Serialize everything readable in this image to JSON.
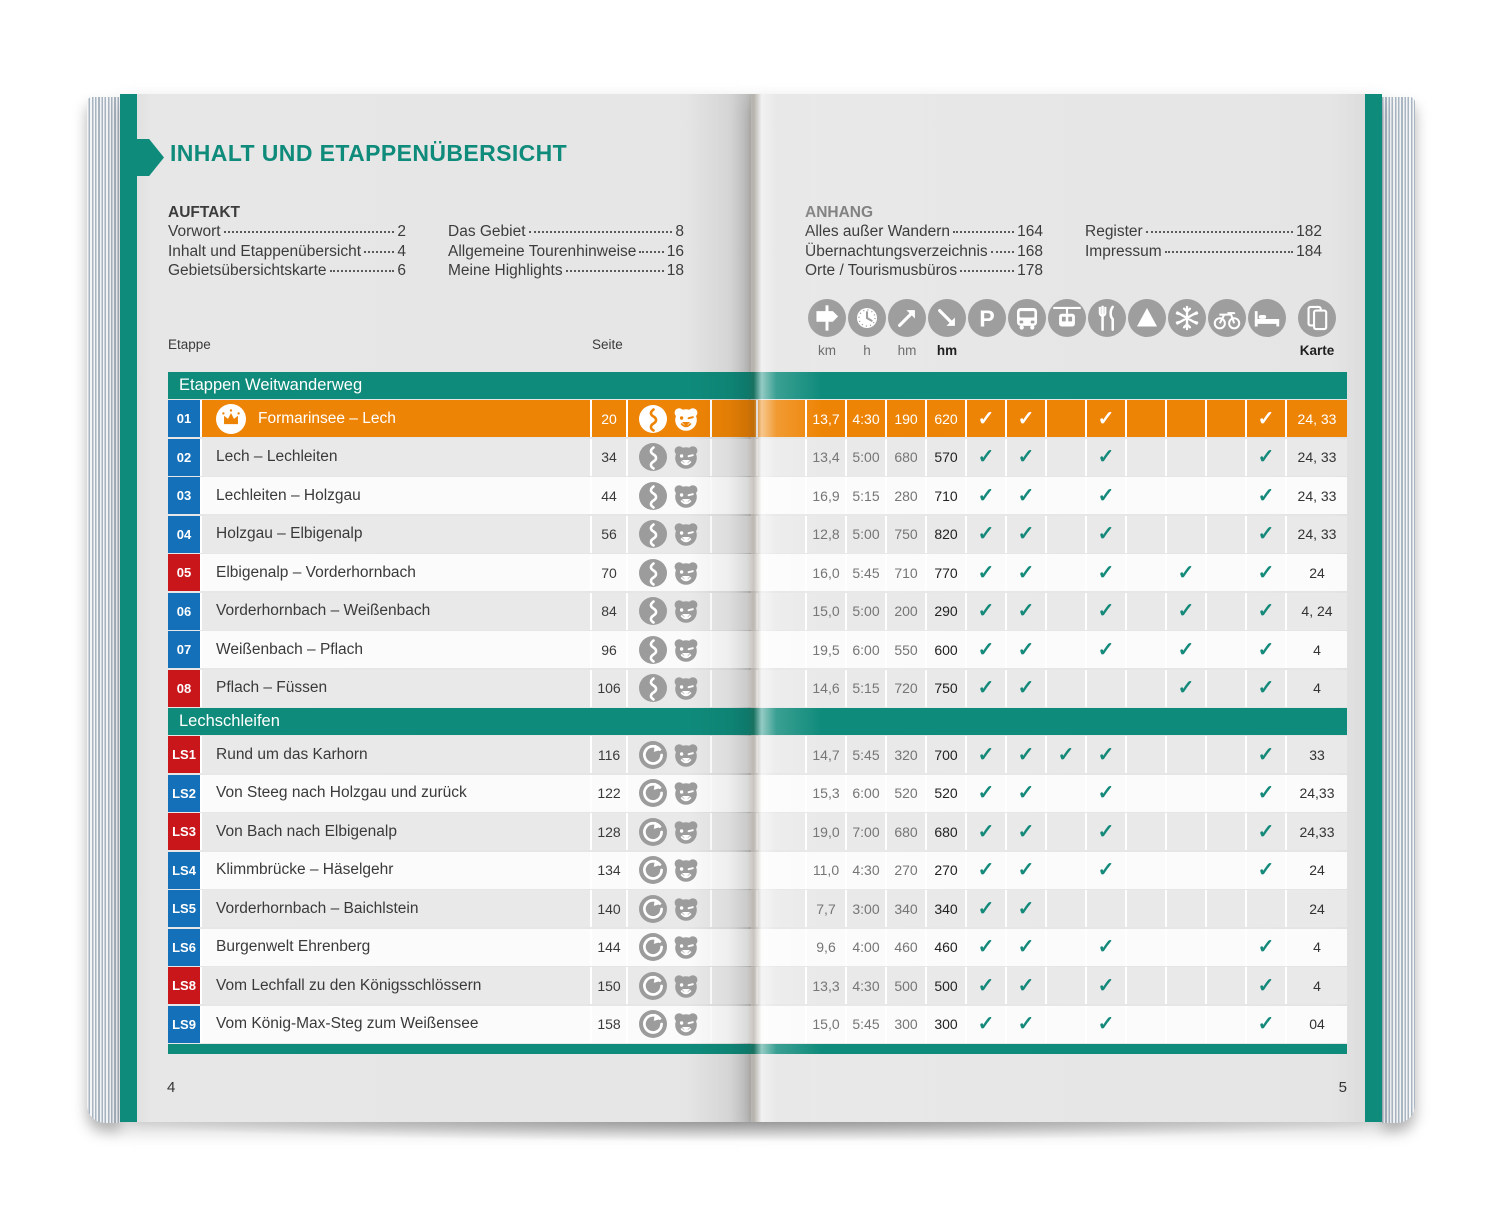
{
  "page": {
    "title": "INHALT UND ETAPPENÜBERSICHT",
    "left_page_number": "4",
    "right_page_number": "5"
  },
  "colors": {
    "teal": "#0F8B7B",
    "orange": "#EE8405",
    "blue": "#1470B8",
    "red": "#C9161B",
    "check": "#15897A",
    "icon_gray": "#9E9E9E"
  },
  "toc": {
    "auftakt": {
      "heading": "AUFTAKT",
      "col1": [
        {
          "label": "Vorwort",
          "page": "2"
        },
        {
          "label": "Inhalt und Etappenübersicht",
          "page": "4"
        },
        {
          "label": "Gebietsübersichtskarte",
          "page": "6"
        }
      ],
      "col2": [
        {
          "label": "Das Gebiet",
          "page": "8"
        },
        {
          "label": "Allgemeine Tourenhinweise",
          "page": "16"
        },
        {
          "label": "Meine Highlights",
          "page": "18"
        }
      ]
    },
    "anhang": {
      "heading": "ANHANG",
      "col1": [
        {
          "label": "Alles außer Wandern",
          "page": "164"
        },
        {
          "label": "Übernachtungsverzeichnis",
          "page": "168"
        },
        {
          "label": "Orte / Tourismusbüros",
          "page": "178"
        }
      ],
      "col2": [
        {
          "label": "Register",
          "page": "182"
        },
        {
          "label": "Impressum",
          "page": "184"
        }
      ]
    }
  },
  "legend": {
    "etappe_label": "Etappe",
    "seite_label": "Seite",
    "icons": [
      {
        "name": "signpost-icon",
        "label": "km"
      },
      {
        "name": "clock-icon",
        "label": "h"
      },
      {
        "name": "ascent-arrow-icon",
        "label": "hm"
      },
      {
        "name": "descent-arrow-icon",
        "label": "hm"
      },
      {
        "name": "parking-icon",
        "label": ""
      },
      {
        "name": "bus-icon",
        "label": ""
      },
      {
        "name": "cablecar-icon",
        "label": ""
      },
      {
        "name": "restaurant-icon",
        "label": ""
      },
      {
        "name": "mountain-icon",
        "label": ""
      },
      {
        "name": "snowflake-icon",
        "label": ""
      },
      {
        "name": "bike-icon",
        "label": ""
      },
      {
        "name": "bed-icon",
        "label": ""
      },
      {
        "name": "map-icon",
        "label": "Karte"
      }
    ]
  },
  "table": {
    "sections": [
      {
        "header": "Etappen Weitwanderweg",
        "rows": [
          {
            "id": "01",
            "badge": "blue",
            "highlight": true,
            "crown": true,
            "route_icon": "wave",
            "name": "Formarinsee – Lech",
            "page": "20",
            "km": "13,7",
            "time": "4:30",
            "ascent": "190",
            "descent": "620",
            "checks": [
              "parking",
              "bus",
              "restaurant",
              "bed"
            ],
            "karte": "24, 33"
          },
          {
            "id": "02",
            "badge": "blue",
            "route_icon": "wave",
            "name": "Lech – Lechleiten",
            "page": "34",
            "km": "13,4",
            "time": "5:00",
            "ascent": "680",
            "descent": "570",
            "checks": [
              "parking",
              "bus",
              "restaurant",
              "bed"
            ],
            "karte": "24, 33"
          },
          {
            "id": "03",
            "badge": "blue",
            "route_icon": "wave",
            "name": "Lechleiten – Holzgau",
            "page": "44",
            "km": "16,9",
            "time": "5:15",
            "ascent": "280",
            "descent": "710",
            "checks": [
              "parking",
              "bus",
              "restaurant",
              "bed"
            ],
            "karte": "24, 33"
          },
          {
            "id": "04",
            "badge": "blue",
            "route_icon": "wave",
            "name": "Holzgau – Elbigenalp",
            "page": "56",
            "km": "12,8",
            "time": "5:00",
            "ascent": "750",
            "descent": "820",
            "checks": [
              "parking",
              "bus",
              "restaurant",
              "bed"
            ],
            "karte": "24, 33"
          },
          {
            "id": "05",
            "badge": "red",
            "route_icon": "wave",
            "name": "Elbigenalp – Vorderhornbach",
            "page": "70",
            "km": "16,0",
            "time": "5:45",
            "ascent": "710",
            "descent": "770",
            "checks": [
              "parking",
              "bus",
              "restaurant",
              "snowflake",
              "bed"
            ],
            "karte": "24"
          },
          {
            "id": "06",
            "badge": "blue",
            "route_icon": "wave",
            "name": "Vorderhornbach – Weißenbach",
            "page": "84",
            "km": "15,0",
            "time": "5:00",
            "ascent": "200",
            "descent": "290",
            "checks": [
              "parking",
              "bus",
              "restaurant",
              "snowflake",
              "bed"
            ],
            "karte": "4, 24"
          },
          {
            "id": "07",
            "badge": "blue",
            "route_icon": "wave",
            "name": "Weißenbach – Pflach",
            "page": "96",
            "km": "19,5",
            "time": "6:00",
            "ascent": "550",
            "descent": "600",
            "checks": [
              "parking",
              "bus",
              "restaurant",
              "snowflake",
              "bed"
            ],
            "karte": "4"
          },
          {
            "id": "08",
            "badge": "red",
            "route_icon": "wave",
            "name": "Pflach – Füssen",
            "page": "106",
            "km": "14,6",
            "time": "5:15",
            "ascent": "720",
            "descent": "750",
            "checks": [
              "parking",
              "bus",
              "snowflake",
              "bed"
            ],
            "karte": "4"
          }
        ]
      },
      {
        "header": "Lechschleifen",
        "rows": [
          {
            "id": "LS1",
            "badge": "red",
            "route_icon": "loop",
            "name": "Rund um das Karhorn",
            "page": "116",
            "km": "14,7",
            "time": "5:45",
            "ascent": "320",
            "descent": "700",
            "checks": [
              "parking",
              "bus",
              "cablecar",
              "restaurant",
              "bed"
            ],
            "karte": "33"
          },
          {
            "id": "LS2",
            "badge": "blue",
            "route_icon": "loop",
            "name": "Von Steeg nach Holzgau und zurück",
            "page": "122",
            "km": "15,3",
            "time": "6:00",
            "ascent": "520",
            "descent": "520",
            "checks": [
              "parking",
              "bus",
              "restaurant",
              "bed"
            ],
            "karte": "24,33"
          },
          {
            "id": "LS3",
            "badge": "red",
            "route_icon": "loop",
            "name": "Von Bach nach Elbigenalp",
            "page": "128",
            "km": "19,0",
            "time": "7:00",
            "ascent": "680",
            "descent": "680",
            "checks": [
              "parking",
              "bus",
              "restaurant",
              "bed"
            ],
            "karte": "24,33"
          },
          {
            "id": "LS4",
            "badge": "blue",
            "route_icon": "loop",
            "name": "Klimmbrücke – Häselgehr",
            "page": "134",
            "km": "11,0",
            "time": "4:30",
            "ascent": "270",
            "descent": "270",
            "checks": [
              "parking",
              "bus",
              "restaurant",
              "bed"
            ],
            "karte": "24"
          },
          {
            "id": "LS5",
            "badge": "blue",
            "route_icon": "loop",
            "name": "Vorderhornbach – Baichlstein",
            "page": "140",
            "km": "7,7",
            "time": "3:00",
            "ascent": "340",
            "descent": "340",
            "checks": [
              "parking",
              "bus"
            ],
            "karte": "24"
          },
          {
            "id": "LS6",
            "badge": "blue",
            "route_icon": "loop",
            "name": "Burgenwelt Ehrenberg",
            "page": "144",
            "km": "9,6",
            "time": "4:00",
            "ascent": "460",
            "descent": "460",
            "checks": [
              "parking",
              "bus",
              "restaurant",
              "bed"
            ],
            "karte": "4"
          },
          {
            "id": "LS8",
            "badge": "red",
            "route_icon": "loop",
            "name": "Vom Lechfall zu den Königsschlössern",
            "page": "150",
            "km": "13,3",
            "time": "4:30",
            "ascent": "500",
            "descent": "500",
            "checks": [
              "parking",
              "bus",
              "restaurant",
              "bed"
            ],
            "karte": "4"
          },
          {
            "id": "LS9",
            "badge": "blue",
            "route_icon": "loop",
            "name": "Vom König-Max-Steg zum Weißensee",
            "page": "158",
            "km": "15,0",
            "time": "5:45",
            "ascent": "300",
            "descent": "300",
            "checks": [
              "parking",
              "bus",
              "restaurant",
              "bed"
            ],
            "karte": "04"
          }
        ]
      }
    ]
  }
}
